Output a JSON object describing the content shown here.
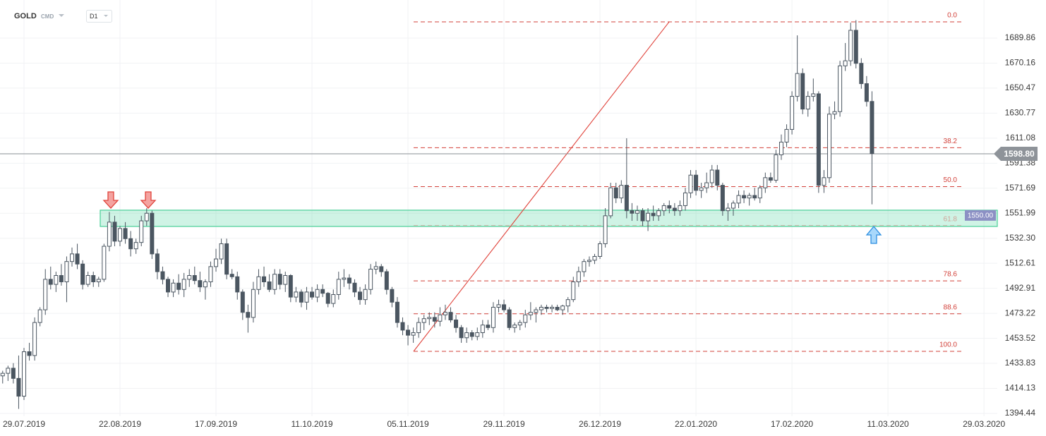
{
  "header": {
    "symbol": "GOLD",
    "market": "CMD",
    "interval": "D1"
  },
  "chart_data": {
    "type": "candlestick",
    "open": [
      1424,
      1426,
      1430,
      1422,
      1408,
      1443,
      1440,
      1466,
      1476,
      1500,
      1496,
      1503,
      1498,
      1514,
      1520,
      1512,
      1496,
      1503,
      1498,
      1500,
      1526,
      1545,
      1530,
      1540,
      1532,
      1524,
      1529,
      1546,
      1552,
      1520,
      1506,
      1500,
      1490,
      1497,
      1492,
      1500,
      1503,
      1499,
      1494,
      1498,
      1510,
      1516,
      1528,
      1504,
      1502,
      1490,
      1474,
      1470,
      1492,
      1502,
      1498,
      1492,
      1504,
      1496,
      1503,
      1486,
      1490,
      1482,
      1490,
      1486,
      1492,
      1489,
      1481,
      1488,
      1500,
      1501,
      1497,
      1490,
      1484,
      1492,
      1508,
      1510,
      1506,
      1492,
      1482,
      1466,
      1460,
      1456,
      1458,
      1466,
      1469,
      1470,
      1467,
      1472,
      1474,
      1468,
      1462,
      1454,
      1458,
      1455,
      1458,
      1464,
      1462,
      1478,
      1480,
      1476,
      1462,
      1464,
      1466,
      1472,
      1474,
      1476,
      1478,
      1477,
      1478,
      1476,
      1479,
      1484,
      1498,
      1506,
      1514,
      1515,
      1518,
      1528,
      1550,
      1572,
      1564,
      1574,
      1554,
      1552,
      1554,
      1546,
      1552,
      1550,
      1554,
      1558,
      1556,
      1554,
      1558,
      1568,
      1582,
      1570,
      1572,
      1576,
      1586,
      1574,
      1554,
      1556,
      1560,
      1566,
      1564,
      1566,
      1564,
      1572,
      1580,
      1578,
      1598,
      1608,
      1618,
      1644,
      1662,
      1634,
      1644,
      1646,
      1574,
      1580,
      1630,
      1632,
      1668,
      1672,
      1696,
      1670,
      1654,
      1640
    ],
    "high": [
      1428,
      1432,
      1434,
      1440,
      1446,
      1450,
      1470,
      1478,
      1508,
      1510,
      1506,
      1512,
      1518,
      1525,
      1528,
      1515,
      1506,
      1506,
      1502,
      1528,
      1553,
      1550,
      1542,
      1545,
      1538,
      1532,
      1550,
      1556,
      1554,
      1524,
      1510,
      1502,
      1500,
      1504,
      1505,
      1508,
      1510,
      1506,
      1500,
      1514,
      1524,
      1532,
      1532,
      1508,
      1506,
      1492,
      1480,
      1498,
      1508,
      1510,
      1504,
      1508,
      1508,
      1506,
      1504,
      1494,
      1492,
      1494,
      1494,
      1496,
      1496,
      1490,
      1492,
      1506,
      1508,
      1504,
      1500,
      1494,
      1496,
      1512,
      1514,
      1512,
      1508,
      1494,
      1486,
      1470,
      1464,
      1462,
      1470,
      1472,
      1474,
      1474,
      1478,
      1480,
      1478,
      1472,
      1464,
      1462,
      1460,
      1462,
      1468,
      1468,
      1482,
      1484,
      1484,
      1478,
      1466,
      1468,
      1476,
      1482,
      1478,
      1480,
      1480,
      1480,
      1480,
      1480,
      1486,
      1502,
      1510,
      1516,
      1518,
      1520,
      1530,
      1556,
      1576,
      1576,
      1578,
      1611,
      1560,
      1558,
      1556,
      1556,
      1558,
      1556,
      1560,
      1562,
      1560,
      1562,
      1572,
      1586,
      1586,
      1576,
      1584,
      1590,
      1590,
      1576,
      1560,
      1562,
      1570,
      1570,
      1568,
      1572,
      1574,
      1584,
      1584,
      1602,
      1614,
      1622,
      1648,
      1692,
      1666,
      1648,
      1658,
      1648,
      1586,
      1636,
      1640,
      1672,
      1686,
      1702,
      1704,
      1674,
      1660,
      1648
    ],
    "low": [
      1418,
      1420,
      1418,
      1398,
      1405,
      1436,
      1436,
      1463,
      1472,
      1492,
      1490,
      1495,
      1482,
      1510,
      1508,
      1492,
      1494,
      1494,
      1494,
      1498,
      1522,
      1526,
      1526,
      1528,
      1518,
      1520,
      1526,
      1542,
      1516,
      1500,
      1496,
      1486,
      1486,
      1488,
      1486,
      1494,
      1496,
      1490,
      1484,
      1494,
      1506,
      1512,
      1500,
      1500,
      1484,
      1468,
      1458,
      1466,
      1488,
      1494,
      1490,
      1488,
      1492,
      1490,
      1482,
      1482,
      1478,
      1476,
      1484,
      1482,
      1486,
      1478,
      1478,
      1484,
      1494,
      1492,
      1486,
      1480,
      1480,
      1488,
      1504,
      1502,
      1488,
      1478,
      1462,
      1456,
      1448,
      1450,
      1454,
      1460,
      1464,
      1462,
      1463,
      1468,
      1466,
      1458,
      1450,
      1450,
      1452,
      1452,
      1454,
      1460,
      1458,
      1474,
      1474,
      1460,
      1458,
      1460,
      1462,
      1468,
      1466,
      1472,
      1474,
      1474,
      1475,
      1472,
      1474,
      1482,
      1494,
      1502,
      1510,
      1512,
      1516,
      1525,
      1548,
      1560,
      1560,
      1548,
      1546,
      1546,
      1542,
      1538,
      1546,
      1546,
      1550,
      1552,
      1550,
      1550,
      1554,
      1564,
      1566,
      1564,
      1568,
      1572,
      1570,
      1550,
      1546,
      1550,
      1556,
      1560,
      1558,
      1562,
      1560,
      1568,
      1576,
      1576,
      1594,
      1604,
      1614,
      1640,
      1630,
      1628,
      1640,
      1568,
      1568,
      1576,
      1626,
      1628,
      1664,
      1668,
      1666,
      1650,
      1636,
      1559
    ],
    "close": [
      1426,
      1430,
      1422,
      1408,
      1443,
      1440,
      1466,
      1476,
      1500,
      1496,
      1503,
      1498,
      1514,
      1520,
      1512,
      1496,
      1503,
      1498,
      1500,
      1526,
      1545,
      1530,
      1540,
      1532,
      1524,
      1529,
      1546,
      1552,
      1520,
      1506,
      1500,
      1490,
      1497,
      1492,
      1500,
      1503,
      1499,
      1494,
      1498,
      1510,
      1516,
      1528,
      1504,
      1502,
      1490,
      1474,
      1470,
      1492,
      1502,
      1498,
      1492,
      1504,
      1496,
      1503,
      1486,
      1490,
      1482,
      1490,
      1486,
      1492,
      1489,
      1481,
      1488,
      1500,
      1501,
      1497,
      1490,
      1484,
      1492,
      1508,
      1510,
      1506,
      1492,
      1482,
      1466,
      1460,
      1456,
      1458,
      1466,
      1469,
      1470,
      1467,
      1472,
      1474,
      1468,
      1462,
      1454,
      1458,
      1455,
      1458,
      1464,
      1462,
      1478,
      1480,
      1476,
      1462,
      1464,
      1466,
      1472,
      1474,
      1476,
      1478,
      1477,
      1478,
      1476,
      1479,
      1484,
      1498,
      1506,
      1514,
      1515,
      1518,
      1528,
      1550,
      1572,
      1564,
      1574,
      1554,
      1552,
      1554,
      1546,
      1552,
      1550,
      1554,
      1558,
      1556,
      1554,
      1558,
      1568,
      1582,
      1570,
      1572,
      1576,
      1586,
      1574,
      1554,
      1556,
      1560,
      1566,
      1564,
      1566,
      1564,
      1572,
      1580,
      1578,
      1598,
      1608,
      1618,
      1644,
      1662,
      1634,
      1644,
      1646,
      1574,
      1580,
      1630,
      1632,
      1668,
      1672,
      1696,
      1670,
      1654,
      1640,
      1599
    ],
    "color_up": "#ffffff",
    "color_down": "#4b5661",
    "xlim": [
      -0.5,
      186.5
    ],
    "xticks": [
      {
        "value": 4,
        "label": "29.07.2019"
      },
      {
        "value": 22,
        "label": "22.08.2019"
      },
      {
        "value": 40,
        "label": "17.09.2019"
      },
      {
        "value": 58,
        "label": "11.10.2019"
      },
      {
        "value": 76,
        "label": "05.11.2019"
      },
      {
        "value": 94,
        "label": "29.11.2019"
      },
      {
        "value": 112,
        "label": "26.12.2019"
      },
      {
        "value": 130,
        "label": "22.01.2020"
      },
      {
        "value": 148,
        "label": "17.02.2020"
      },
      {
        "value": 166,
        "label": "11.03.2020"
      },
      {
        "value": 184,
        "label": "29.03.2020"
      }
    ],
    "ylim": [
      1392.2,
      1719.85
    ],
    "yticks": [
      1394.44,
      1414.13,
      1433.83,
      1453.52,
      1473.22,
      1492.91,
      1512.61,
      {
        "value": 1532.3,
        "label": "1532.30"
      },
      1551.99,
      1571.69,
      1591.38,
      1611.08,
      1630.77,
      1650.47,
      1670.16,
      1689.86
    ],
    "grid": true,
    "last_price": {
      "value": 1598.8,
      "label": "1598.80"
    },
    "zone": {
      "low": 1541.6,
      "high": 1554.4,
      "value": 1550,
      "label": "1550.00"
    },
    "fibonacci": {
      "low": 1443.3,
      "high": 1702.6,
      "levels": [
        {
          "value": 0,
          "label": "0.0"
        },
        {
          "value": 38.2,
          "label": "38.2"
        },
        {
          "value": 50,
          "label": "50.0"
        },
        {
          "value": 61.8,
          "label": "61.8"
        },
        {
          "value": 78.6,
          "label": "78.6"
        },
        {
          "value": 88.6,
          "label": "88.6"
        },
        {
          "value": 100,
          "label": "100.0"
        }
      ]
    }
  }
}
